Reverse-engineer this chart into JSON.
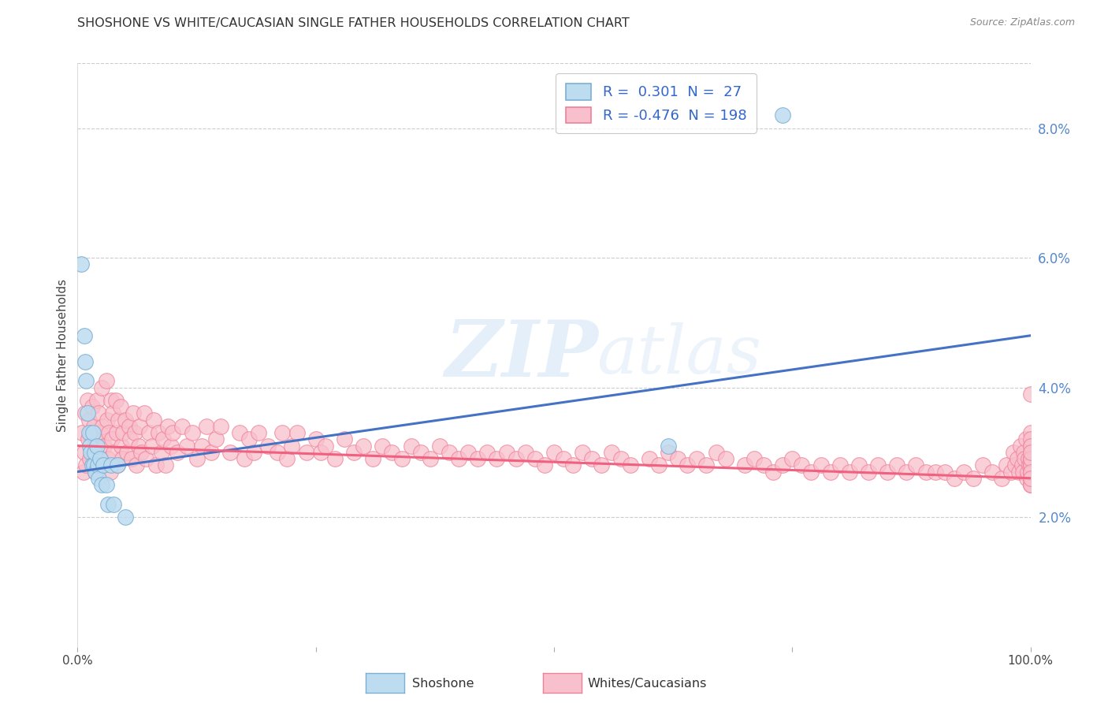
{
  "title": "SHOSHONE VS WHITE/CAUCASIAN SINGLE FATHER HOUSEHOLDS CORRELATION CHART",
  "source": "Source: ZipAtlas.com",
  "ylabel": "Single Father Households",
  "xlim": [
    0.0,
    1.0
  ],
  "ylim": [
    0.0,
    0.09
  ],
  "yticks": [
    0.02,
    0.04,
    0.06,
    0.08
  ],
  "ytick_labels": [
    "2.0%",
    "4.0%",
    "6.0%",
    "8.0%"
  ],
  "xtick_labels": [
    "0.0%",
    "100.0%"
  ],
  "blue_color": "#7BAFD4",
  "blue_fill": "#BDDCF0",
  "pink_color": "#F08098",
  "pink_fill": "#F8C0CC",
  "line_blue": "#4472C4",
  "line_pink": "#F06080",
  "watermark_zip": "ZIP",
  "watermark_atlas": "atlas",
  "blue_line_x": [
    0.0,
    1.0
  ],
  "blue_line_y": [
    0.027,
    0.048
  ],
  "pink_line_x": [
    0.0,
    1.0
  ],
  "pink_line_y": [
    0.031,
    0.026
  ],
  "legend_label1": "R =  0.301  N =  27",
  "legend_label2": "R = -0.476  N = 198",
  "bottom_label1": "Shoshone",
  "bottom_label2": "Whites/Caucasians",
  "shoshone_x": [
    0.004,
    0.007,
    0.008,
    0.009,
    0.01,
    0.012,
    0.013,
    0.014,
    0.015,
    0.016,
    0.017,
    0.018,
    0.019,
    0.02,
    0.021,
    0.022,
    0.024,
    0.025,
    0.027,
    0.03,
    0.032,
    0.035,
    0.038,
    0.042,
    0.05,
    0.62,
    0.74
  ],
  "shoshone_y": [
    0.059,
    0.048,
    0.044,
    0.041,
    0.036,
    0.033,
    0.031,
    0.03,
    0.028,
    0.033,
    0.028,
    0.03,
    0.027,
    0.031,
    0.028,
    0.026,
    0.029,
    0.025,
    0.028,
    0.025,
    0.022,
    0.028,
    0.022,
    0.028,
    0.02,
    0.031,
    0.082
  ],
  "white_x": [
    0.005,
    0.006,
    0.007,
    0.008,
    0.009,
    0.01,
    0.011,
    0.012,
    0.013,
    0.014,
    0.015,
    0.016,
    0.017,
    0.018,
    0.019,
    0.02,
    0.021,
    0.022,
    0.023,
    0.024,
    0.025,
    0.026,
    0.027,
    0.028,
    0.03,
    0.031,
    0.032,
    0.033,
    0.034,
    0.035,
    0.036,
    0.037,
    0.038,
    0.04,
    0.041,
    0.042,
    0.043,
    0.045,
    0.046,
    0.047,
    0.048,
    0.05,
    0.052,
    0.054,
    0.055,
    0.057,
    0.058,
    0.06,
    0.062,
    0.064,
    0.065,
    0.067,
    0.07,
    0.072,
    0.075,
    0.078,
    0.08,
    0.082,
    0.085,
    0.088,
    0.09,
    0.092,
    0.095,
    0.098,
    0.1,
    0.105,
    0.11,
    0.115,
    0.12,
    0.125,
    0.13,
    0.135,
    0.14,
    0.145,
    0.15,
    0.16,
    0.17,
    0.175,
    0.18,
    0.185,
    0.19,
    0.2,
    0.21,
    0.215,
    0.22,
    0.225,
    0.23,
    0.24,
    0.25,
    0.255,
    0.26,
    0.27,
    0.28,
    0.29,
    0.3,
    0.31,
    0.32,
    0.33,
    0.34,
    0.35,
    0.36,
    0.37,
    0.38,
    0.39,
    0.4,
    0.41,
    0.42,
    0.43,
    0.44,
    0.45,
    0.46,
    0.47,
    0.48,
    0.49,
    0.5,
    0.51,
    0.52,
    0.53,
    0.54,
    0.55,
    0.56,
    0.57,
    0.58,
    0.6,
    0.61,
    0.62,
    0.63,
    0.64,
    0.65,
    0.66,
    0.67,
    0.68,
    0.7,
    0.71,
    0.72,
    0.73,
    0.74,
    0.75,
    0.76,
    0.77,
    0.78,
    0.79,
    0.8,
    0.81,
    0.82,
    0.83,
    0.84,
    0.85,
    0.86,
    0.87,
    0.88,
    0.89,
    0.9,
    0.91,
    0.92,
    0.93,
    0.94,
    0.95,
    0.96,
    0.97,
    0.975,
    0.98,
    0.982,
    0.984,
    0.986,
    0.988,
    0.99,
    0.991,
    0.992,
    0.993,
    0.994,
    0.995,
    0.996,
    0.997,
    0.998,
    0.999,
    1.0,
    1.0,
    1.0,
    1.0,
    1.0,
    1.0,
    1.0,
    1.0,
    1.0,
    1.0,
    1.0,
    1.0,
    1.0,
    1.0,
    1.0,
    1.0,
    1.0,
    1.0,
    1.0,
    1.0,
    1.0,
    1.0,
    1.0,
    1.0
  ],
  "white_y": [
    0.033,
    0.027,
    0.03,
    0.036,
    0.028,
    0.038,
    0.032,
    0.035,
    0.029,
    0.033,
    0.037,
    0.03,
    0.034,
    0.031,
    0.027,
    0.038,
    0.032,
    0.036,
    0.029,
    0.033,
    0.04,
    0.034,
    0.028,
    0.031,
    0.041,
    0.035,
    0.029,
    0.033,
    0.027,
    0.038,
    0.032,
    0.036,
    0.03,
    0.038,
    0.033,
    0.028,
    0.035,
    0.037,
    0.031,
    0.029,
    0.033,
    0.035,
    0.03,
    0.034,
    0.032,
    0.029,
    0.036,
    0.033,
    0.028,
    0.031,
    0.034,
    0.03,
    0.036,
    0.029,
    0.033,
    0.031,
    0.035,
    0.028,
    0.033,
    0.03,
    0.032,
    0.028,
    0.034,
    0.031,
    0.033,
    0.03,
    0.034,
    0.031,
    0.033,
    0.029,
    0.031,
    0.034,
    0.03,
    0.032,
    0.034,
    0.03,
    0.033,
    0.029,
    0.032,
    0.03,
    0.033,
    0.031,
    0.03,
    0.033,
    0.029,
    0.031,
    0.033,
    0.03,
    0.032,
    0.03,
    0.031,
    0.029,
    0.032,
    0.03,
    0.031,
    0.029,
    0.031,
    0.03,
    0.029,
    0.031,
    0.03,
    0.029,
    0.031,
    0.03,
    0.029,
    0.03,
    0.029,
    0.03,
    0.029,
    0.03,
    0.029,
    0.03,
    0.029,
    0.028,
    0.03,
    0.029,
    0.028,
    0.03,
    0.029,
    0.028,
    0.03,
    0.029,
    0.028,
    0.029,
    0.028,
    0.03,
    0.029,
    0.028,
    0.029,
    0.028,
    0.03,
    0.029,
    0.028,
    0.029,
    0.028,
    0.027,
    0.028,
    0.029,
    0.028,
    0.027,
    0.028,
    0.027,
    0.028,
    0.027,
    0.028,
    0.027,
    0.028,
    0.027,
    0.028,
    0.027,
    0.028,
    0.027,
    0.027,
    0.027,
    0.026,
    0.027,
    0.026,
    0.028,
    0.027,
    0.026,
    0.028,
    0.027,
    0.03,
    0.028,
    0.029,
    0.027,
    0.031,
    0.028,
    0.027,
    0.03,
    0.029,
    0.032,
    0.026,
    0.027,
    0.029,
    0.028,
    0.033,
    0.026,
    0.028,
    0.027,
    0.029,
    0.031,
    0.025,
    0.027,
    0.03,
    0.026,
    0.028,
    0.032,
    0.025,
    0.027,
    0.029,
    0.031,
    0.026,
    0.028,
    0.025,
    0.029,
    0.027,
    0.03,
    0.026,
    0.039
  ]
}
